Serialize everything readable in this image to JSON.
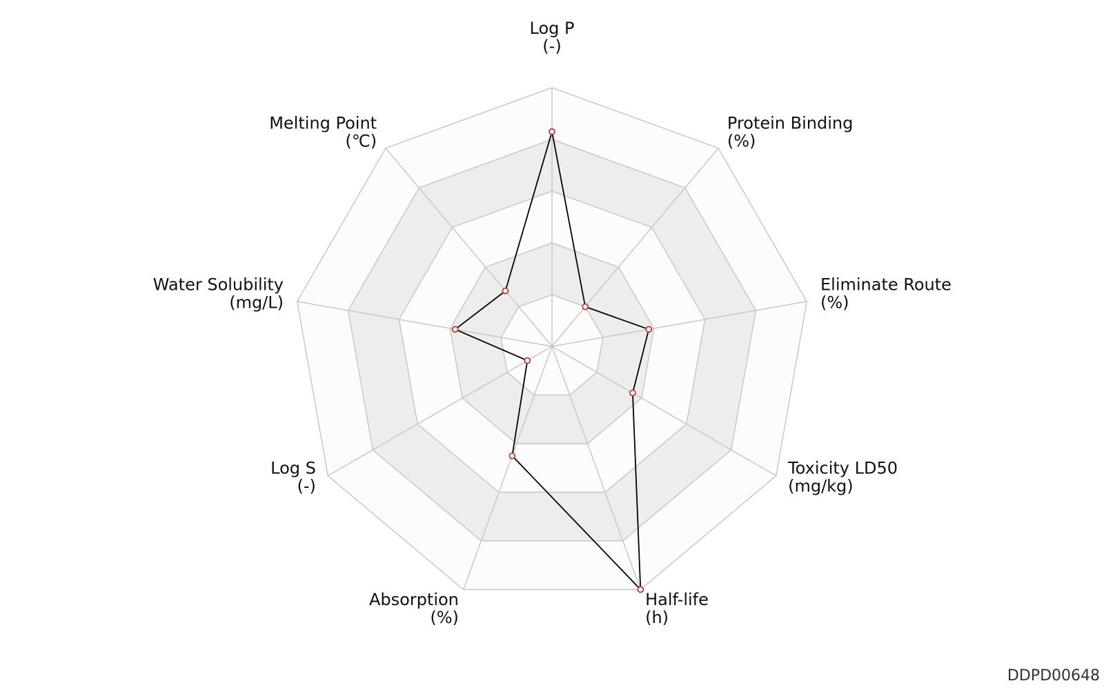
{
  "chart_data": {
    "type": "radar",
    "axes": [
      {
        "name": "Log P",
        "unit": "(-)"
      },
      {
        "name": "Protein Binding",
        "unit": "(%)"
      },
      {
        "name": "Eliminate Route",
        "unit": "(%)"
      },
      {
        "name": "Toxicity LD50",
        "unit": "(mg/kg)"
      },
      {
        "name": "Half-life",
        "unit": "(h)"
      },
      {
        "name": "Absorption",
        "unit": "(%)"
      },
      {
        "name": "Log S",
        "unit": "(-)"
      },
      {
        "name": "Water Solubility",
        "unit": "(mg/L)"
      },
      {
        "name": "Melting Point",
        "unit": "(℃)"
      }
    ],
    "values": [
      0.83,
      0.2,
      0.38,
      0.36,
      1.0,
      0.45,
      0.11,
      0.38,
      0.28
    ],
    "range": [
      0,
      1
    ],
    "rings": 5,
    "grid": true,
    "colors": {
      "line": "#000000",
      "marker_edge": "#c0392b",
      "marker_fill": "#ffffff",
      "grid_line": "#c8c8c8",
      "band_fill": "#ededed",
      "band_alt_fill": "#fcfcfc"
    }
  },
  "watermark": "DDPD00648"
}
